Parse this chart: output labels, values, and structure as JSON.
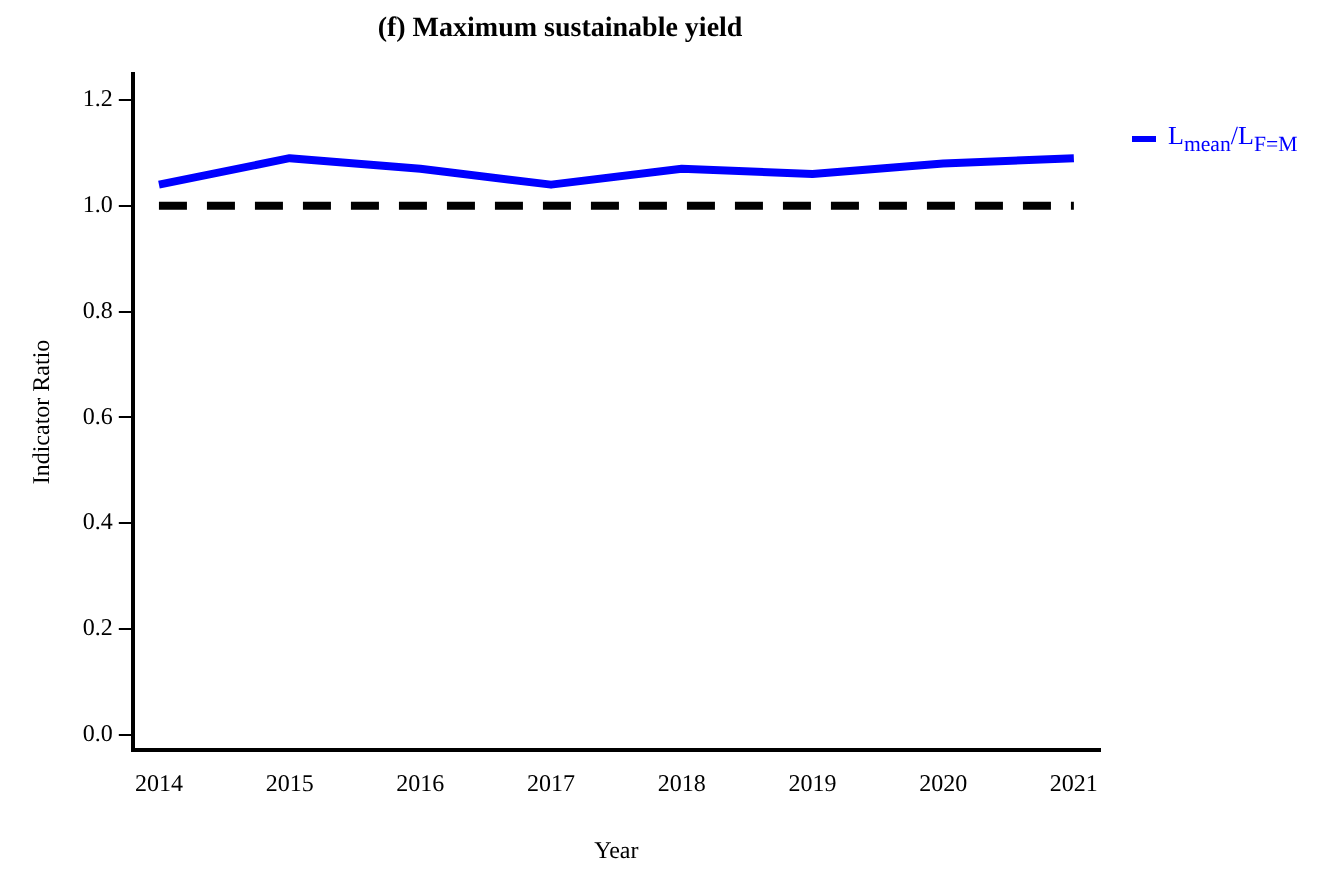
{
  "chart_data": {
    "type": "line",
    "title": "(f) Maximum sustainable yield",
    "xlabel": "Year",
    "ylabel": "Indicator Ratio",
    "x": [
      2014,
      2015,
      2016,
      2017,
      2018,
      2019,
      2020,
      2021
    ],
    "series": [
      {
        "name": "L$_{mean}$/L$_{F=M}$",
        "color": "#0000ff",
        "values": [
          1.04,
          1.09,
          1.07,
          1.04,
          1.07,
          1.06,
          1.08,
          1.09
        ]
      }
    ],
    "xlim": [
      2013.8,
      2021.2
    ],
    "xticks": [
      2014,
      2015,
      2016,
      2017,
      2018,
      2019,
      2020,
      2021
    ],
    "ylim": [
      -0.03,
      1.25
    ],
    "yticks": [
      {
        "value": 0,
        "label": "0.0"
      },
      0.2,
      0.4,
      0.6,
      0.8,
      {
        "value": 1,
        "label": "1.0"
      },
      1.2
    ],
    "ref_lines": [
      {
        "axis": "y",
        "value": 1,
        "color": "#000000",
        "line_style": "dashed"
      }
    ],
    "grid": false,
    "legend": "top right",
    "marker": "none",
    "line_style": "solid"
  }
}
